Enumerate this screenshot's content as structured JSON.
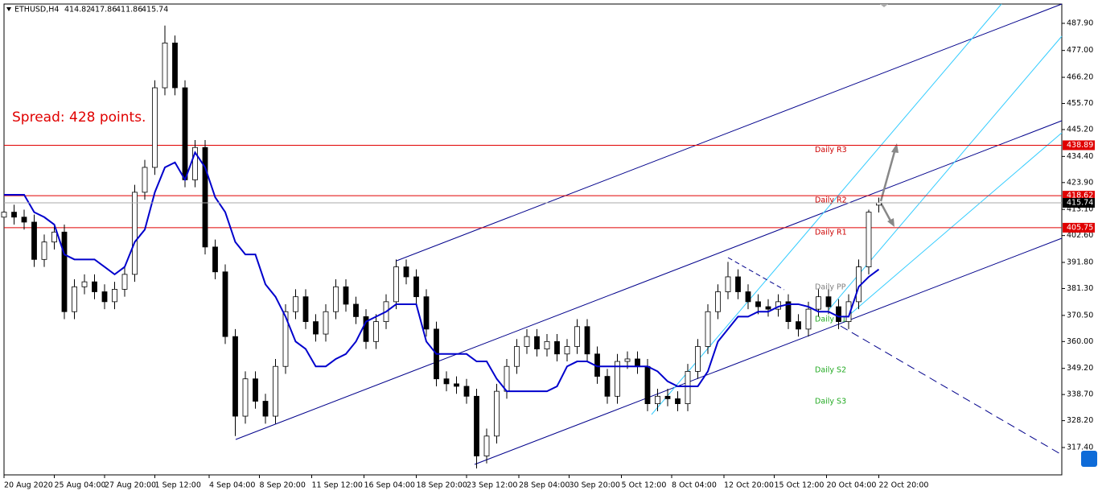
{
  "chart_data": {
    "type": "candlestick",
    "symbol": "ETHUSD,H4",
    "annotation": "Spread: 428 points.",
    "ohlc": {
      "open": [
        410,
        412,
        410,
        408,
        393,
        400,
        404,
        372,
        382,
        384,
        380,
        376,
        381,
        387,
        420,
        430,
        462,
        480,
        462,
        425,
        438,
        398,
        388,
        362,
        330,
        345,
        336,
        330,
        350,
        372,
        378,
        368,
        363,
        372,
        382,
        375,
        370,
        360,
        368,
        376,
        390,
        386,
        378,
        365,
        345,
        343,
        342,
        338,
        314,
        322,
        340,
        350,
        358,
        362,
        357,
        360,
        355,
        358,
        366,
        355,
        346,
        338,
        352,
        353,
        350,
        335,
        338,
        337,
        335,
        348,
        358,
        372,
        380,
        386,
        380,
        376,
        374,
        373,
        376,
        368,
        365,
        373,
        378,
        374,
        368,
        376,
        390,
        414.82
      ],
      "high": [
        415,
        415,
        413,
        411,
        403,
        407,
        407,
        385,
        387,
        387,
        383,
        384,
        390,
        423,
        433,
        465,
        487,
        483,
        465,
        441,
        441,
        401,
        391,
        365,
        348,
        348,
        339,
        353,
        375,
        381,
        381,
        371,
        375,
        385,
        385,
        378,
        373,
        371,
        379,
        393,
        393,
        389,
        381,
        368,
        348,
        346,
        345,
        341,
        325,
        343,
        353,
        361,
        365,
        365,
        363,
        363,
        361,
        369,
        369,
        358,
        349,
        355,
        356,
        356,
        353,
        341,
        341,
        340,
        351,
        361,
        375,
        383,
        392,
        389,
        383,
        379,
        377,
        379,
        379,
        371,
        376,
        381,
        381,
        377,
        379,
        393,
        413,
        417.86
      ],
      "low": [
        407,
        407,
        405,
        390,
        390,
        397,
        369,
        369,
        379,
        377,
        373,
        373,
        378,
        384,
        417,
        427,
        459,
        459,
        422,
        422,
        395,
        385,
        359,
        322,
        327,
        333,
        327,
        327,
        347,
        369,
        365,
        360,
        360,
        369,
        372,
        367,
        357,
        357,
        365,
        373,
        383,
        375,
        362,
        342,
        340,
        339,
        335,
        309,
        311,
        319,
        337,
        347,
        355,
        354,
        354,
        352,
        352,
        355,
        352,
        343,
        335,
        335,
        349,
        347,
        332,
        332,
        334,
        332,
        332,
        345,
        355,
        369,
        377,
        377,
        373,
        371,
        370,
        370,
        365,
        362,
        362,
        370,
        371,
        365,
        365,
        373,
        387,
        411.86
      ],
      "close": [
        412,
        410,
        408,
        393,
        400,
        404,
        372,
        382,
        384,
        380,
        376,
        381,
        387,
        420,
        430,
        462,
        480,
        462,
        425,
        438,
        398,
        388,
        362,
        330,
        345,
        336,
        330,
        350,
        372,
        378,
        368,
        363,
        372,
        382,
        375,
        370,
        360,
        368,
        376,
        390,
        386,
        378,
        365,
        345,
        343,
        342,
        338,
        314,
        322,
        340,
        350,
        358,
        362,
        357,
        360,
        355,
        358,
        366,
        355,
        346,
        338,
        352,
        353,
        350,
        335,
        338,
        337,
        335,
        348,
        358,
        372,
        380,
        386,
        380,
        376,
        374,
        373,
        376,
        368,
        365,
        373,
        378,
        374,
        368,
        376,
        390,
        412,
        415.74
      ]
    },
    "ma": {
      "color": "#0000cc",
      "values": [
        419,
        419,
        419,
        412,
        410,
        407,
        395,
        393,
        393,
        393,
        390,
        387,
        390,
        400,
        405,
        420,
        430,
        432,
        425,
        436,
        430,
        418,
        412,
        400,
        395,
        395,
        383,
        378,
        370,
        360,
        357,
        350,
        350,
        353,
        355,
        360,
        368,
        370,
        372,
        375,
        375,
        375,
        360,
        355,
        355,
        355,
        355,
        352,
        352,
        345,
        340,
        340,
        340,
        340,
        340,
        342,
        350,
        352,
        352,
        350,
        350,
        350,
        350,
        350,
        350,
        348,
        344,
        342,
        342,
        342,
        348,
        360,
        365,
        370,
        370,
        372,
        372,
        374,
        375,
        375,
        374,
        372,
        372,
        370,
        370,
        382,
        386,
        389
      ]
    },
    "pivots": [
      {
        "label": "Daily R3",
        "value": 438.89,
        "color": "#cc0000"
      },
      {
        "label": "Daily R2",
        "value": 418.62,
        "color": "#cc0000"
      },
      {
        "label": "Daily R1",
        "value": 405.75,
        "color": "#cc0000"
      },
      {
        "label": "Daily PP",
        "value": 383.7,
        "color": "#808080"
      },
      {
        "label": "Daily S1",
        "value": 370.8,
        "color": "#22aa22"
      },
      {
        "label": "Daily S2",
        "value": 350.4,
        "color": "#22aa22"
      },
      {
        "label": "Daily S3",
        "value": 337.8,
        "color": "#22aa22"
      }
    ],
    "level_lines": [
      0,
      1,
      2
    ],
    "xlim": [
      0,
      105.2
    ],
    "ylim": [
      306.4,
      495.66
    ],
    "xticks": [
      {
        "value": 0,
        "label": "20 Aug 2020"
      },
      {
        "value": 5,
        "label": "25 Aug 04:00"
      },
      {
        "value": 10,
        "label": "27 Aug 20:00"
      },
      {
        "value": 15,
        "label": "1 Sep 12:00"
      },
      {
        "value": 20.4,
        "label": "4 Sep 04:00"
      },
      {
        "value": 25.4,
        "label": "8 Sep 20:00"
      },
      {
        "value": 30.6,
        "label": "11 Sep 12:00"
      },
      {
        "value": 35.8,
        "label": "16 Sep 04:00"
      },
      {
        "value": 41,
        "label": "18 Sep 20:00"
      },
      {
        "value": 46,
        "label": "23 Sep 12:00"
      },
      {
        "value": 51.2,
        "label": "28 Sep 04:00"
      },
      {
        "value": 56.2,
        "label": "30 Sep 20:00"
      },
      {
        "value": 61.4,
        "label": "5 Oct 12:00"
      },
      {
        "value": 66.4,
        "label": "8 Oct 04:00"
      },
      {
        "value": 71.6,
        "label": "12 Oct 20:00"
      },
      {
        "value": 76.6,
        "label": "15 Oct 12:00"
      },
      {
        "value": 81.8,
        "label": "20 Oct 04:00"
      },
      {
        "value": 87,
        "label": "22 Oct 20:00"
      }
    ],
    "yticks": [
      {
        "value": 487.9,
        "label": "487.90"
      },
      {
        "value": 477,
        "label": "477.00"
      },
      {
        "value": 466.2,
        "label": "466.20"
      },
      {
        "value": 455.7,
        "label": "455.70"
      },
      {
        "value": 445.2,
        "label": "445.20"
      },
      {
        "value": 434.4,
        "label": "434.40"
      },
      {
        "value": 423.9,
        "label": "423.90"
      },
      {
        "value": 413.1,
        "label": "413.10"
      },
      {
        "value": 402.6,
        "label": "402.60"
      },
      {
        "value": 391.8,
        "label": "391.80"
      },
      {
        "value": 381.3,
        "label": "381.30"
      },
      {
        "value": 370.5,
        "label": "370.50"
      },
      {
        "value": 360,
        "label": "360.00"
      },
      {
        "value": 349.2,
        "label": "349.20"
      },
      {
        "value": 338.7,
        "label": "338.70"
      },
      {
        "value": 328.2,
        "label": "328.20"
      },
      {
        "value": 317.4,
        "label": "317.40"
      }
    ]
  }
}
